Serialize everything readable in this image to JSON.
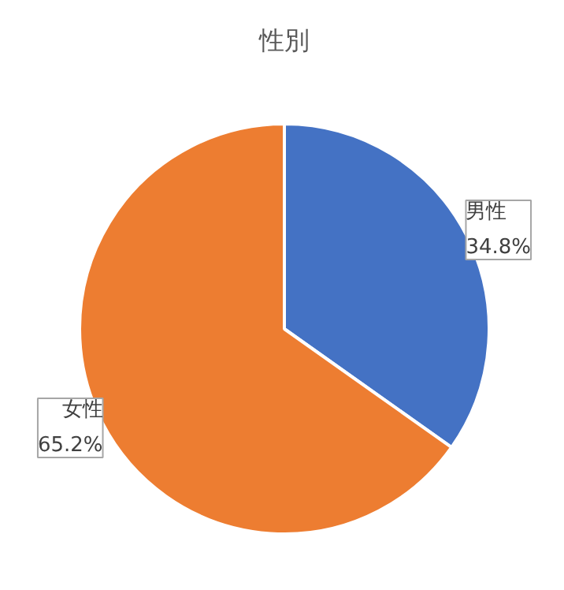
{
  "chart_data": {
    "type": "pie",
    "title": "性別",
    "categories": [
      "男性",
      "女性"
    ],
    "values": [
      34.8,
      65.2
    ],
    "colors": [
      "#4472c4",
      "#ed7d31"
    ],
    "value_labels": [
      "34.8%",
      "65.2%"
    ],
    "legend": false
  }
}
